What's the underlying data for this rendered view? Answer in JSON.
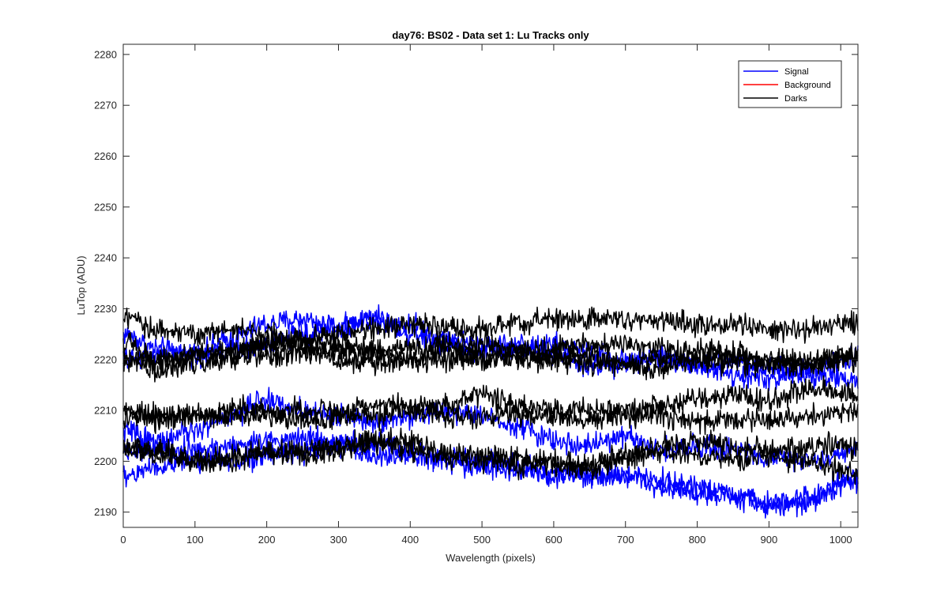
{
  "chart_data": {
    "type": "line",
    "title": "day76: BS02 - Data set 1: Lu Tracks only",
    "xlabel": "Wavelength (pixels)",
    "ylabel": "LuTop (ADU)",
    "xlim": [
      0,
      1024
    ],
    "ylim": [
      2187,
      2282
    ],
    "xticks": [
      0,
      100,
      200,
      300,
      400,
      500,
      600,
      700,
      800,
      900,
      1000
    ],
    "yticks": [
      2190,
      2200,
      2210,
      2220,
      2230,
      2240,
      2250,
      2260,
      2270,
      2280
    ],
    "grid": false,
    "legend_position": "top-right",
    "legend": [
      {
        "label": "Signal",
        "color": "#0000ff"
      },
      {
        "label": "Background",
        "color": "#ff0000"
      },
      {
        "label": "Darks",
        "color": "#000000"
      }
    ],
    "noise_amplitude": 1.1,
    "x": [
      0,
      50,
      100,
      150,
      200,
      250,
      300,
      350,
      400,
      450,
      500,
      550,
      600,
      650,
      700,
      750,
      800,
      850,
      900,
      950,
      1024
    ],
    "series": [
      {
        "group": "Signal",
        "color": "#0000ff",
        "values": [
          2225,
          2222,
          2221,
          2224,
          2227,
          2228,
          2226,
          2228,
          2227,
          2224,
          2223,
          2222,
          2223,
          2221,
          2220,
          2220,
          2219,
          2220,
          2218,
          2217,
          2216
        ]
      },
      {
        "group": "Signal",
        "color": "#0000ff",
        "values": [
          2220,
          2221,
          2221,
          2222,
          2223,
          2225,
          2227,
          2228,
          2225,
          2223,
          2222,
          2223,
          2221,
          2219,
          2219,
          2221,
          2219,
          2217,
          2216,
          2218,
          2220
        ]
      },
      {
        "group": "Signal",
        "color": "#0000ff",
        "values": [
          2206,
          2204,
          2206,
          2209,
          2212,
          2210,
          2209,
          2208,
          2209,
          2210,
          2209,
          2207,
          2204,
          2203,
          2205,
          2202,
          2203,
          2202,
          2201,
          2200,
          2202
        ]
      },
      {
        "group": "Signal",
        "color": "#0000ff",
        "values": [
          2202,
          2203,
          2202,
          2203,
          2204,
          2205,
          2204,
          2203,
          2202,
          2200,
          2199,
          2198,
          2197,
          2197,
          2197,
          2196,
          2195,
          2193,
          2192,
          2193,
          2197
        ]
      },
      {
        "group": "Signal",
        "color": "#0000ff",
        "values": [
          2197,
          2199,
          2200,
          2200,
          2201,
          2202,
          2203,
          2201,
          2201,
          2200,
          2200,
          2199,
          2198,
          2197,
          2197,
          2195,
          2194,
          2193,
          2191,
          2192,
          2196
        ]
      },
      {
        "group": "Darks",
        "color": "#000000",
        "values": [
          2228,
          2226,
          2225,
          2226,
          2225,
          2224,
          2225,
          2226,
          2227,
          2226,
          2226,
          2227,
          2228,
          2228,
          2228,
          2228,
          2227,
          2227,
          2226,
          2226,
          2227
        ]
      },
      {
        "group": "Darks",
        "color": "#000000",
        "values": [
          2223,
          2220,
          2219,
          2221,
          2223,
          2224,
          2223,
          2222,
          2222,
          2223,
          2223,
          2222,
          2222,
          2223,
          2223,
          2222,
          2222,
          2221,
          2220,
          2219,
          2220
        ]
      },
      {
        "group": "Darks",
        "color": "#000000",
        "values": [
          2220,
          2220,
          2221,
          2220,
          2221,
          2221,
          2222,
          2221,
          2220,
          2220,
          2220,
          2221,
          2220,
          2219,
          2219,
          2220,
          2220,
          2219,
          2219,
          2220,
          2221
        ]
      },
      {
        "group": "Darks",
        "color": "#000000",
        "values": [
          2220,
          2218,
          2221,
          2222,
          2223,
          2222,
          2220,
          2219,
          2220,
          2222,
          2221,
          2220,
          2220,
          2221,
          2219,
          2218,
          2220,
          2221,
          2219,
          2219,
          2221
        ]
      },
      {
        "group": "Darks",
        "color": "#000000",
        "values": [
          2210,
          2208,
          2209,
          2210,
          2210,
          2210,
          2210,
          2211,
          2211,
          2211,
          2213,
          2211,
          2210,
          2210,
          2210,
          2211,
          2212,
          2213,
          2212,
          2214,
          2213
        ]
      },
      {
        "group": "Darks",
        "color": "#000000",
        "values": [
          2208,
          2209,
          2209,
          2209,
          2209,
          2208,
          2209,
          2209,
          2210,
          2209,
          2209,
          2209,
          2209,
          2208,
          2209,
          2209,
          2208,
          2208,
          2208,
          2209,
          2210
        ]
      },
      {
        "group": "Darks",
        "color": "#000000",
        "values": [
          2203,
          2201,
          2200,
          2201,
          2202,
          2202,
          2202,
          2204,
          2204,
          2201,
          2200,
          2201,
          2199,
          2199,
          2201,
          2203,
          2204,
          2203,
          2202,
          2203,
          2203
        ]
      },
      {
        "group": "Darks",
        "color": "#000000",
        "values": [
          2202,
          2202,
          2200,
          2200,
          2202,
          2201,
          2203,
          2204,
          2202,
          2201,
          2201,
          2199,
          2200,
          2199,
          2201,
          2202,
          2201,
          2200,
          2201,
          2200,
          2198
        ]
      }
    ]
  }
}
